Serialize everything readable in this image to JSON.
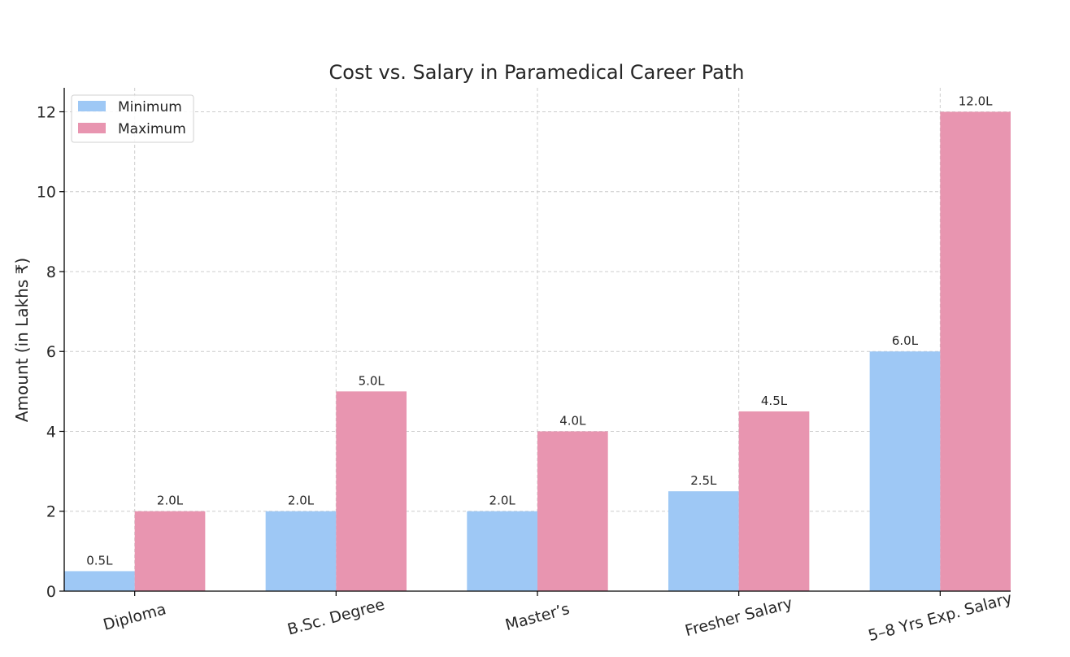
{
  "chart_data": {
    "type": "bar",
    "title": "Cost vs. Salary in Paramedical Career Path",
    "xlabel": "",
    "ylabel": "Amount (in Lakhs ₹)",
    "categories": [
      "Diploma",
      "B.Sc. Degree",
      "Master’s",
      "Fresher Salary",
      "5–8 Yrs Exp. Salary"
    ],
    "series": [
      {
        "name": "Minimum",
        "values": [
          0.5,
          2.0,
          2.0,
          2.5,
          6.0
        ],
        "labels": [
          "0.5L",
          "2.0L",
          "2.0L",
          "2.5L",
          "6.0L"
        ],
        "color": "#9ec8f5"
      },
      {
        "name": "Maximum",
        "values": [
          2.0,
          5.0,
          4.0,
          4.5,
          12.0
        ],
        "labels": [
          "2.0L",
          "5.0L",
          "4.0L",
          "4.5L",
          "12.0L"
        ],
        "color": "#e895b0"
      }
    ],
    "ylim": [
      0,
      12.6
    ],
    "yticks": [
      0,
      2,
      4,
      6,
      8,
      10,
      12
    ],
    "grid": true,
    "legend_position": "top-left"
  }
}
